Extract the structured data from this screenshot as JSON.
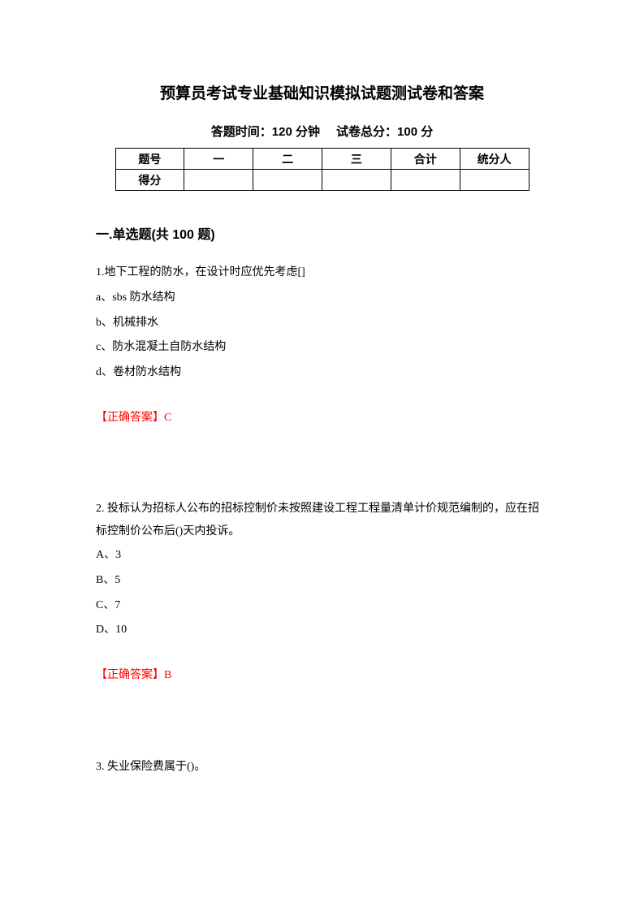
{
  "title": "预算员考试专业基础知识模拟试题测试卷和答案",
  "subtitle": {
    "time_label": "答题时间：",
    "time_value": "120 分钟",
    "score_label": "试卷总分：",
    "score_value": "100 分"
  },
  "score_table": {
    "headers": [
      "题号",
      "一",
      "二",
      "三",
      "合计",
      "统分人"
    ],
    "row_label": "得分"
  },
  "section_header": "一.单选题(共 100 题)",
  "q1": {
    "text": "1.地下工程的防水，在设计时应优先考虑[]",
    "options": [
      "a、sbs 防水结构",
      "b、机械排水",
      "c、防水混凝土自防水结构",
      "d、卷材防水结构"
    ],
    "answer": "【正确答案】C"
  },
  "q2": {
    "text": "2. 投标认为招标人公布的招标控制价未按照建设工程工程量清单计价规范编制的，应在招标控制价公布后()天内投诉。",
    "options": [
      "A、3",
      "B、5",
      "C、7",
      "D、10"
    ],
    "answer": "【正确答案】B"
  },
  "q3": {
    "text": "3. 失业保险费属于()。"
  }
}
